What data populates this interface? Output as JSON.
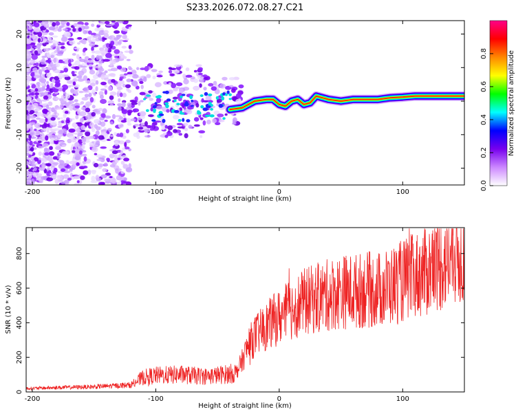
{
  "figure_title": "S233.2026.072.08.27.C21",
  "chart_data": [
    {
      "type": "heatmap",
      "title": "S233.2026.072.08.27.C21",
      "xlabel": "Height of straight line (km)",
      "ylabel": "Frequency (Hz)",
      "xlim": [
        -205,
        150
      ],
      "ylim": [
        -25,
        24
      ],
      "xticks": [
        "-200",
        "-100",
        "0",
        "100"
      ],
      "xtick_values": [
        -200,
        -100,
        0,
        100
      ],
      "yticks": [
        "20",
        "10",
        "0",
        "-10",
        "-20"
      ],
      "ytick_values": [
        20,
        10,
        0,
        -10,
        -20
      ],
      "colorbar": {
        "label": "Normalized spectral amplitude",
        "range": [
          0,
          1
        ],
        "ticks": [
          "0.0",
          "0.2",
          "0.4",
          "0.6",
          "0.8"
        ],
        "tick_values": [
          0.0,
          0.2,
          0.4,
          0.6,
          0.8
        ],
        "colors": [
          "#ffffff",
          "#cc88ff",
          "#7700ee",
          "#0000ff",
          "#00ffff",
          "#00ff00",
          "#ffff00",
          "#ff8800",
          "#ff0000",
          "#ff0088"
        ]
      },
      "ridge": {
        "x": [
          -40,
          -30,
          -20,
          -10,
          -5,
          0,
          5,
          10,
          15,
          20,
          25,
          30,
          40,
          50,
          60,
          70,
          80,
          90,
          100,
          110,
          120,
          130,
          140,
          150
        ],
        "freq": [
          -2.5,
          -2,
          0,
          0.5,
          0.5,
          -1,
          -1.5,
          0,
          0.5,
          -1,
          -0.5,
          1.5,
          0.5,
          0,
          0.5,
          0.5,
          0.5,
          1,
          1.2,
          1.5,
          1.5,
          1.5,
          1.5,
          1.5
        ]
      }
    },
    {
      "type": "line",
      "xlabel": "Height of straight line (km)",
      "ylabel": "SNR (10 * v/v)",
      "xlim": [
        -205,
        150
      ],
      "ylim": [
        0,
        950
      ],
      "xticks": [
        "-200",
        "-100",
        "0",
        "100"
      ],
      "xtick_values": [
        -200,
        -100,
        0,
        100
      ],
      "yticks": [
        "0",
        "200",
        "400",
        "600",
        "800"
      ],
      "ytick_values": [
        0,
        200,
        400,
        600,
        800
      ],
      "color": "#ee2222",
      "series": [
        {
          "name": "SNR",
          "x": [
            -205,
            -180,
            -150,
            -120,
            -110,
            -100,
            -80,
            -60,
            -45,
            -35,
            -30,
            -25,
            -20,
            -10,
            -5,
            0,
            10,
            20,
            30,
            40,
            50,
            60,
            70,
            80,
            90,
            100,
            110,
            120,
            130,
            140,
            150
          ],
          "y": [
            20,
            25,
            30,
            40,
            85,
            95,
            100,
            90,
            100,
            110,
            180,
            270,
            320,
            380,
            410,
            430,
            480,
            520,
            540,
            560,
            580,
            580,
            590,
            590,
            610,
            640,
            670,
            700,
            740,
            770,
            800
          ]
        }
      ]
    }
  ]
}
